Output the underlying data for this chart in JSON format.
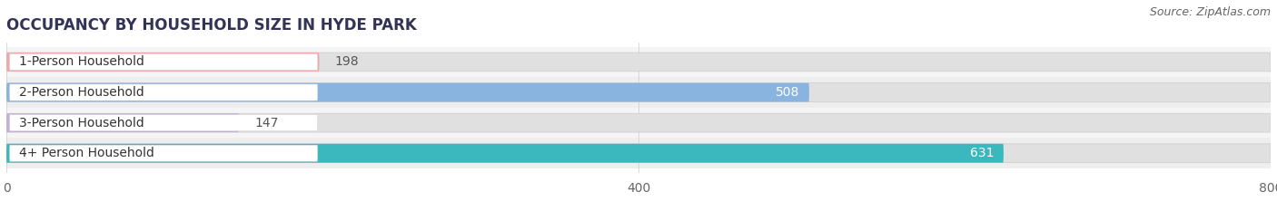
{
  "title": "OCCUPANCY BY HOUSEHOLD SIZE IN HYDE PARK",
  "source": "Source: ZipAtlas.com",
  "categories": [
    "1-Person Household",
    "2-Person Household",
    "3-Person Household",
    "4+ Person Household"
  ],
  "values": [
    198,
    508,
    147,
    631
  ],
  "bar_colors": [
    "#f0a8a8",
    "#8ab4e0",
    "#c4aed4",
    "#3ab8be"
  ],
  "bar_bg_color": "#e0e0e0",
  "xlim": [
    0,
    800
  ],
  "xticks": [
    0,
    400,
    800
  ],
  "title_fontsize": 12,
  "source_fontsize": 9,
  "tick_fontsize": 10,
  "bar_label_fontsize": 10,
  "cat_label_fontsize": 10,
  "background_color": "#ffffff",
  "row_bg_colors": [
    "#f5f5f5",
    "#eeeeee",
    "#f5f5f5",
    "#eeeeee"
  ],
  "bar_height": 0.62
}
